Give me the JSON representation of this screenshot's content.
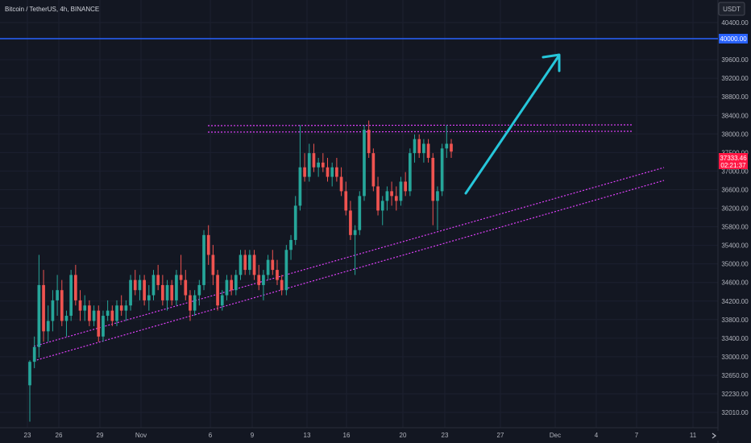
{
  "header": {
    "title": "Bitcoin / TetherUS, 4h, BINANCE"
  },
  "chart_data": {
    "type": "candlestick",
    "currency": "USDT",
    "x_ticks": [
      "23",
      "26",
      "29",
      "Nov",
      "6",
      "9",
      "13",
      "16",
      "20",
      "23",
      "27",
      "Dec",
      "4",
      "7",
      "11"
    ],
    "y_ticks": [
      "40400.00",
      "40000.00",
      "39600.00",
      "39200.00",
      "38800.00",
      "38400.00",
      "38000.00",
      "37500.00",
      "37000.00",
      "36600.00",
      "36200.00",
      "35800.00",
      "35400.00",
      "35000.00",
      "34600.00",
      "34200.00",
      "33800.00",
      "33400.00",
      "33000.00",
      "32650.00",
      "32230.00",
      "32010.00"
    ],
    "y_scale": "log",
    "ylim": [
      31900,
      40700
    ],
    "last_price": "37333.46",
    "countdown": "02:21:37",
    "key_level": "40000.00",
    "candles": [
      [
        32680,
        33150,
        32010,
        33120
      ],
      [
        33120,
        33600,
        33000,
        33400
      ],
      [
        33400,
        35200,
        33200,
        34600
      ],
      [
        34600,
        34900,
        33500,
        33700
      ],
      [
        33700,
        34200,
        33500,
        33900
      ],
      [
        33900,
        34500,
        33700,
        34300
      ],
      [
        34300,
        34800,
        34000,
        34500
      ],
      [
        34500,
        34700,
        33800,
        33900
      ],
      [
        33900,
        34100,
        33600,
        34000
      ],
      [
        34000,
        34900,
        33900,
        34800
      ],
      [
        34800,
        35000,
        34200,
        34300
      ],
      [
        34300,
        34500,
        33900,
        34100
      ],
      [
        34100,
        34400,
        33900,
        34200
      ],
      [
        34200,
        34300,
        33800,
        33900
      ],
      [
        33900,
        34200,
        33800,
        34100
      ],
      [
        34100,
        34200,
        33500,
        33600
      ],
      [
        33600,
        34100,
        33500,
        34000
      ],
      [
        34000,
        34300,
        33900,
        34100
      ],
      [
        34100,
        34200,
        33800,
        33900
      ],
      [
        33900,
        34300,
        33800,
        34200
      ],
      [
        34200,
        34400,
        34000,
        34100
      ],
      [
        34100,
        34300,
        33900,
        34200
      ],
      [
        34200,
        34800,
        34100,
        34700
      ],
      [
        34700,
        34900,
        34400,
        34500
      ],
      [
        34500,
        34800,
        34300,
        34700
      ],
      [
        34700,
        34800,
        34200,
        34300
      ],
      [
        34300,
        34600,
        34100,
        34400
      ],
      [
        34400,
        34900,
        34300,
        34800
      ],
      [
        34800,
        35000,
        34500,
        34600
      ],
      [
        34600,
        34800,
        34200,
        34300
      ],
      [
        34300,
        34700,
        34100,
        34600
      ],
      [
        34600,
        34700,
        34200,
        34300
      ],
      [
        34300,
        34900,
        34200,
        34800
      ],
      [
        34800,
        35200,
        34600,
        34700
      ],
      [
        34700,
        34900,
        34300,
        34400
      ],
      [
        34400,
        34500,
        33900,
        34100
      ],
      [
        34100,
        34500,
        34000,
        34400
      ],
      [
        34400,
        34700,
        34200,
        34600
      ],
      [
        34600,
        35700,
        34500,
        35600
      ],
      [
        35600,
        35800,
        35000,
        35200
      ],
      [
        35200,
        35400,
        34600,
        34800
      ],
      [
        34800,
        34900,
        34100,
        34200
      ],
      [
        34200,
        34500,
        34100,
        34400
      ],
      [
        34400,
        34800,
        34300,
        34700
      ],
      [
        34700,
        34800,
        34400,
        34500
      ],
      [
        34500,
        34900,
        34400,
        34800
      ],
      [
        34800,
        35300,
        34700,
        35200
      ],
      [
        35200,
        35300,
        34800,
        34900
      ],
      [
        34900,
        35300,
        34800,
        35200
      ],
      [
        35200,
        35300,
        34700,
        34800
      ],
      [
        34800,
        35000,
        34500,
        34600
      ],
      [
        34600,
        34900,
        34300,
        34800
      ],
      [
        34800,
        35200,
        34700,
        35100
      ],
      [
        35100,
        35300,
        34800,
        34900
      ],
      [
        34900,
        35100,
        34600,
        34700
      ],
      [
        34700,
        34800,
        34400,
        34500
      ],
      [
        34500,
        35400,
        34400,
        35300
      ],
      [
        35300,
        35600,
        35100,
        35500
      ],
      [
        35500,
        36400,
        35400,
        36200
      ],
      [
        36200,
        37900,
        36100,
        37000
      ],
      [
        37000,
        37300,
        36700,
        36800
      ],
      [
        36800,
        37500,
        36700,
        37300
      ],
      [
        37300,
        37500,
        36900,
        37000
      ],
      [
        37000,
        37200,
        36800,
        37100
      ],
      [
        37100,
        37300,
        36900,
        37000
      ],
      [
        37000,
        37200,
        36700,
        36800
      ],
      [
        36800,
        37100,
        36600,
        37000
      ],
      [
        37000,
        37200,
        36700,
        36800
      ],
      [
        36800,
        37000,
        36400,
        36500
      ],
      [
        36500,
        36700,
        36000,
        36100
      ],
      [
        36100,
        36300,
        35500,
        35600
      ],
      [
        35600,
        35800,
        34800,
        35700
      ],
      [
        35700,
        36500,
        35600,
        36400
      ],
      [
        36400,
        37900,
        36300,
        37800
      ],
      [
        37800,
        38000,
        37200,
        37300
      ],
      [
        37300,
        37400,
        36500,
        36600
      ],
      [
        36600,
        36800,
        36000,
        36100
      ],
      [
        36100,
        36400,
        35800,
        36300
      ],
      [
        36300,
        36600,
        36100,
        36500
      ],
      [
        36500,
        36700,
        36200,
        36400
      ],
      [
        36400,
        36600,
        36100,
        36300
      ],
      [
        36300,
        36800,
        36200,
        36700
      ],
      [
        36700,
        36900,
        36400,
        36500
      ],
      [
        36500,
        37400,
        36400,
        37300
      ],
      [
        37300,
        37700,
        37100,
        37600
      ],
      [
        37600,
        37700,
        37200,
        37300
      ],
      [
        37300,
        37600,
        37100,
        37500
      ],
      [
        37500,
        37600,
        37100,
        37200
      ],
      [
        37200,
        37300,
        35800,
        36300
      ],
      [
        36300,
        36600,
        35700,
        36500
      ],
      [
        36500,
        37500,
        36400,
        37400
      ],
      [
        37400,
        37900,
        37200,
        37500
      ],
      [
        37500,
        37600,
        37200,
        37333
      ]
    ]
  }
}
